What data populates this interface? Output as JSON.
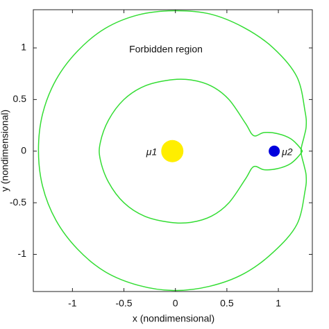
{
  "chart_data": {
    "type": "line",
    "annotation": "Forbidden region",
    "xlabel": "x (nondimensional)",
    "ylabel": "y (nondimensional)",
    "xlim": [
      -1.38,
      1.33
    ],
    "ylim": [
      -1.36,
      1.37
    ],
    "xticks": [
      -1,
      -0.5,
      0,
      0.5,
      1
    ],
    "yticks": [
      -1,
      -0.5,
      0,
      0.5,
      1
    ],
    "series": [
      {
        "color": "#33dd33",
        "x": [
          1.22,
          1.25,
          1.27,
          1.26,
          1.18,
          0.95,
          0.66,
          0.33,
          -0.02,
          -0.36,
          -0.68,
          -0.95,
          -1.16,
          -1.29,
          -1.33,
          -1.29,
          -1.16,
          -0.95,
          -0.68,
          -0.36,
          -0.02,
          0.33,
          0.66,
          0.95,
          1.18,
          1.26,
          1.27,
          1.25
        ],
        "values": [
          0.0,
          0.14,
          0.24,
          0.38,
          0.72,
          1.0,
          1.2,
          1.33,
          1.36,
          1.32,
          1.19,
          0.97,
          0.69,
          0.36,
          0.01,
          -0.34,
          -0.67,
          -0.95,
          -1.17,
          -1.3,
          -1.35,
          -1.31,
          -1.19,
          -0.98,
          -0.71,
          -0.38,
          -0.24,
          -0.14
        ]
      },
      {
        "color": "#33dd33",
        "x": [
          1.22,
          1.12,
          0.99,
          0.86,
          0.76,
          0.68,
          0.52,
          0.35,
          0.15,
          -0.05,
          -0.3,
          -0.5,
          -0.65,
          -0.73,
          -0.73,
          -0.65,
          -0.5,
          -0.3,
          -0.05,
          0.15,
          0.35,
          0.52,
          0.68,
          0.76,
          0.86,
          0.99,
          1.12,
          1.22
        ],
        "values": [
          0.02,
          0.12,
          0.17,
          0.18,
          0.15,
          0.27,
          0.5,
          0.63,
          0.69,
          0.69,
          0.63,
          0.5,
          0.3,
          0.08,
          -0.08,
          -0.3,
          -0.5,
          -0.63,
          -0.69,
          -0.69,
          -0.63,
          -0.5,
          -0.27,
          -0.15,
          -0.18,
          -0.17,
          -0.12,
          -0.02
        ]
      }
    ],
    "bodies": [
      {
        "label": "μ1",
        "color": "#ffee00",
        "x": -0.03,
        "y": 0
      },
      {
        "label": "μ2",
        "color": "#0000dd",
        "x": 0.96,
        "y": 0
      }
    ]
  }
}
